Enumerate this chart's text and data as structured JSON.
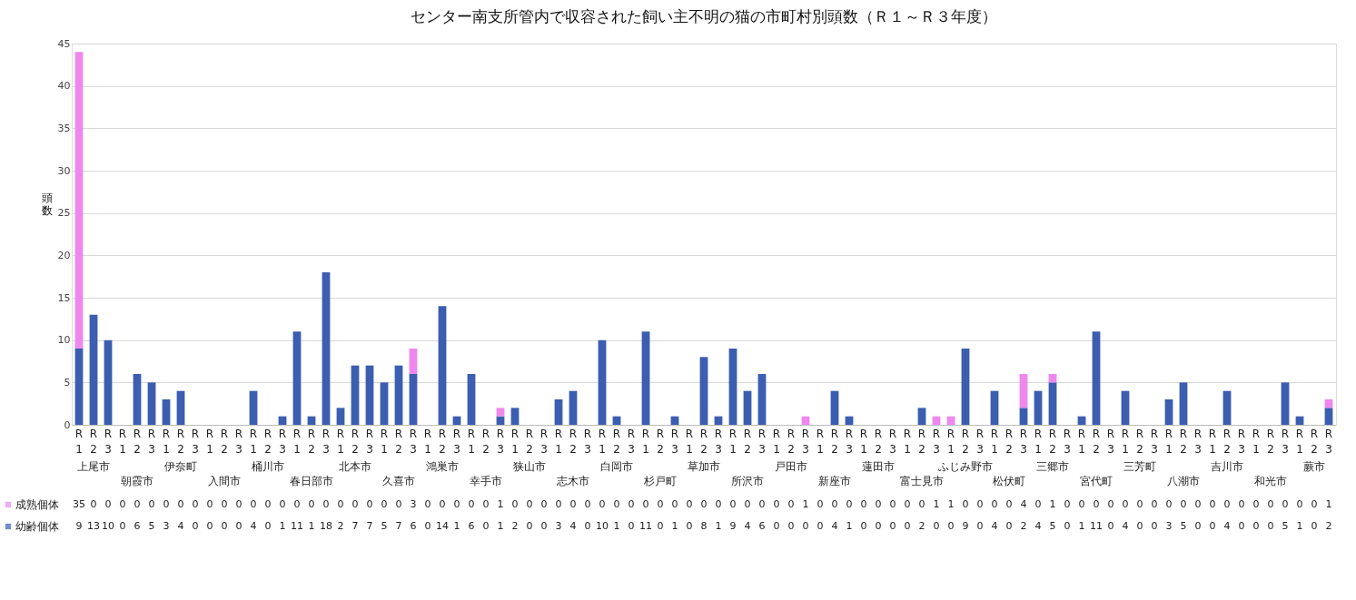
{
  "chart_data": {
    "type": "bar",
    "title": "センター南支所管内で収容された飼い主不明の猫の市町村別頭数（Ｒ１～Ｒ３年度）",
    "ylabel": "頭数",
    "categories": [
      "R1",
      "R2",
      "R3",
      "R1",
      "R2",
      "R3",
      "R1",
      "R2",
      "R3",
      "R1",
      "R2",
      "R3",
      "R1",
      "R2",
      "R3",
      "R1",
      "R2",
      "R3",
      "R1",
      "R2",
      "R3",
      "R1",
      "R2",
      "R3",
      "R1",
      "R2",
      "R3",
      "R1",
      "R2",
      "R3",
      "R1",
      "R2",
      "R3",
      "R1",
      "R2",
      "R3",
      "R1",
      "R2",
      "R3",
      "R1",
      "R2",
      "R3",
      "R1",
      "R2",
      "R3",
      "R1",
      "R2",
      "R3",
      "R1",
      "R2",
      "R3",
      "R1",
      "R2",
      "R3",
      "R1",
      "R2",
      "R3",
      "R1",
      "R2",
      "R3",
      "R1",
      "R2",
      "R3",
      "R1",
      "R2",
      "R3",
      "R1",
      "R2",
      "R3",
      "R1",
      "R2",
      "R3",
      "R1",
      "R2",
      "R3",
      "R1",
      "R2",
      "R3",
      "R1",
      "R2",
      "R3",
      "R1",
      "R2",
      "R3",
      "R1",
      "R2",
      "R3"
    ],
    "annotations": [
      "上尾市",
      "朝霞市",
      "伊奈町",
      "入間市",
      "桶川市",
      "春日部市",
      "北本市",
      "久喜市",
      "鴻巣市",
      "幸手市",
      "狭山市",
      "志木市",
      "白岡市",
      "杉戸町",
      "草加市",
      "所沢市",
      "戸田市",
      "新座市",
      "蓮田市",
      "富士見市",
      "ふじみ野市",
      "松伏町",
      "三郷市",
      "宮代町",
      "三芳町",
      "八潮市",
      "吉川市",
      "和光市",
      "蕨市"
    ],
    "stacked": true,
    "data_labels": true,
    "legend": "bottom left",
    "grid": "y",
    "ylim": [
      0,
      45
    ],
    "yticks": [
      0,
      5,
      10,
      15,
      20,
      25,
      30,
      35,
      40,
      45
    ],
    "series": [
      {
        "name": "幼齢個体",
        "color": "#3b5eb0",
        "values": [
          9,
          13,
          10,
          0,
          6,
          5,
          3,
          4,
          0,
          0,
          0,
          0,
          4,
          0,
          1,
          11,
          1,
          18,
          2,
          7,
          7,
          5,
          7,
          6,
          0,
          14,
          1,
          6,
          0,
          1,
          2,
          0,
          0,
          3,
          4,
          0,
          10,
          1,
          0,
          11,
          0,
          1,
          0,
          8,
          1,
          9,
          4,
          6,
          0,
          0,
          0,
          0,
          4,
          1,
          0,
          0,
          0,
          0,
          2,
          0,
          0,
          9,
          0,
          4,
          0,
          2,
          4,
          5,
          0,
          1,
          11,
          0,
          4,
          0,
          0,
          3,
          5,
          0,
          0,
          4,
          0,
          0,
          0,
          5,
          1,
          0,
          2
        ]
      },
      {
        "name": "成熟個体",
        "color": "#ee88ee",
        "values": [
          35,
          0,
          0,
          0,
          0,
          0,
          0,
          0,
          0,
          0,
          0,
          0,
          0,
          0,
          0,
          0,
          0,
          0,
          0,
          0,
          0,
          0,
          0,
          3,
          0,
          0,
          0,
          0,
          0,
          1,
          0,
          0,
          0,
          0,
          0,
          0,
          0,
          0,
          0,
          0,
          0,
          0,
          0,
          0,
          0,
          0,
          0,
          0,
          0,
          0,
          1,
          0,
          0,
          0,
          0,
          0,
          0,
          0,
          0,
          1,
          1,
          0,
          0,
          0,
          0,
          4,
          0,
          1,
          0,
          0,
          0,
          0,
          0,
          0,
          0,
          0,
          0,
          0,
          0,
          0,
          0,
          0,
          0,
          0,
          0,
          0,
          1
        ]
      }
    ]
  }
}
